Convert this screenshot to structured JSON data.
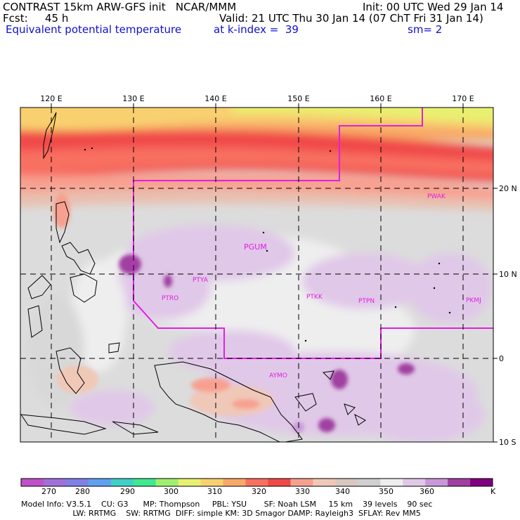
{
  "header": {
    "model_line": "CONTRAST 15km ARW-GFS init   NCAR/MMM",
    "init_line": "Init: 00 UTC Wed 29 Jan 14",
    "fcst_label": "Fcst:",
    "fcst_value": "45 h",
    "valid_line": "Valid: 21 UTC Thu 30 Jan 14 (07 ChT Fri 31 Jan 14)",
    "field_name": "Equivalent potential temperature",
    "level_text": "at k-index =  39",
    "smooth_text": "sm= 2"
  },
  "map": {
    "lon_labels": [
      "120 E",
      "130 E",
      "140 E",
      "150 E",
      "160 E",
      "170 E"
    ],
    "lat_labels": [
      "20 N",
      "10 N",
      "0",
      "10 S"
    ],
    "stations": [
      "PWAK",
      "PGUM",
      "PTYA",
      "PTRO",
      "PTKK",
      "PTPN",
      "PKMJ",
      "AYMO"
    ]
  },
  "colorbar": {
    "unit": "K",
    "labels": [
      "270",
      "280",
      "290",
      "300",
      "310",
      "320",
      "330",
      "340",
      "350",
      "360"
    ],
    "colors": [
      "#c050c8",
      "#a070d8",
      "#8080e8",
      "#60a0f0",
      "#40d0c8",
      "#40e890",
      "#a0f070",
      "#e8f070",
      "#f8d070",
      "#f8a868",
      "#f87060",
      "#f04848",
      "#f8a090",
      "#f0c8b8",
      "#d8c8c0",
      "#d0d0d0",
      "#eeeeee",
      "#e0c8e8",
      "#c898d8",
      "#a040a0",
      "#800080"
    ]
  },
  "footer": {
    "line1": "Model Info: V3.5.1    CU: G3      MP: Thompson     PBL: YSU       SF: Noah LSM     15 km    39 levels    90 sec",
    "line2": "                     LW: RRTMG    SW: RRTMG  DIFF: simple KM: 3D Smagor DAMP: Rayleigh3  SFLAY: Rev MM5"
  }
}
